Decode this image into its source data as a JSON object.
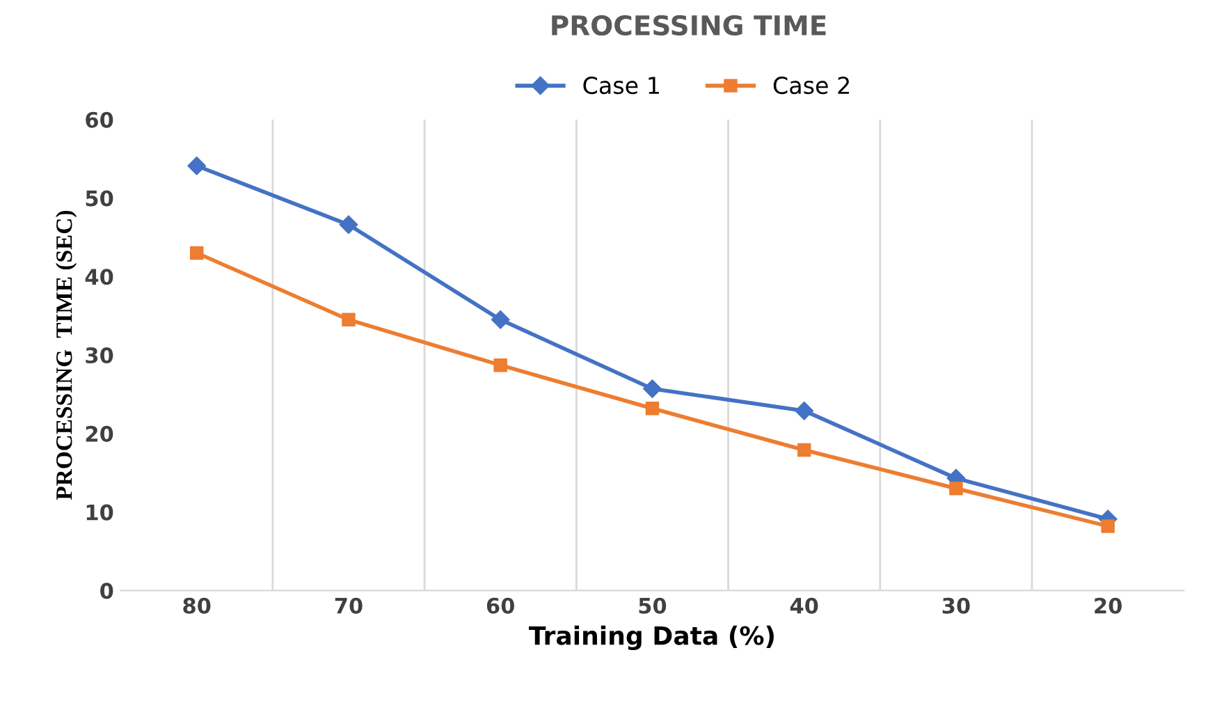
{
  "chart_data": {
    "type": "line",
    "title": "PROCESSING TIME",
    "xlabel": "Training Data (%)",
    "ylabel": "PROCESSING  TIME (SEC)",
    "categories": [
      "80",
      "70",
      "60",
      "50",
      "40",
      "30",
      "20"
    ],
    "series": [
      {
        "name": "Case 1",
        "color": "#4472c4",
        "marker": "diamond",
        "values": [
          54.1,
          46.6,
          34.5,
          25.7,
          22.9,
          14.3,
          9.1
        ]
      },
      {
        "name": "Case 2",
        "color": "#ed7d31",
        "marker": "square",
        "values": [
          43,
          34.5,
          28.7,
          23.2,
          17.9,
          13,
          8.2
        ]
      }
    ],
    "ylim": [
      0,
      60
    ],
    "yticks": [
      0,
      10,
      20,
      30,
      40,
      50,
      60
    ],
    "grid": "x",
    "legend": "top",
    "line_style": "solid"
  }
}
